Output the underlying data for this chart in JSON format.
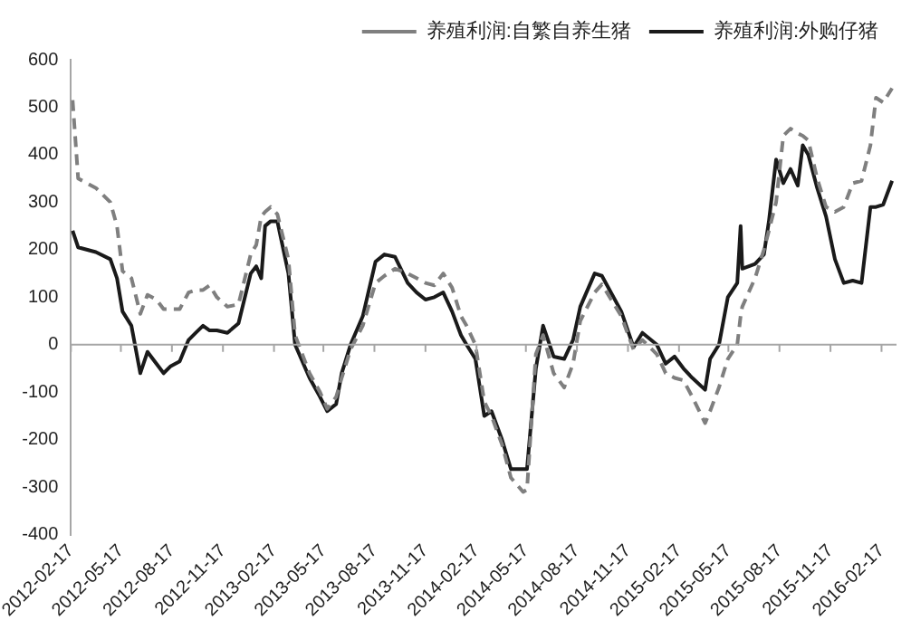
{
  "chart_data": {
    "type": "line",
    "legend": "top",
    "grid": false,
    "x": [
      "2012-02-20",
      "2012-03-01",
      "2012-04-02",
      "2012-04-28",
      "2012-05-10",
      "2012-05-20",
      "2012-06-05",
      "2012-06-21",
      "2012-07-04",
      "2012-07-20",
      "2012-08-02",
      "2012-08-15",
      "2012-08-31",
      "2012-09-16",
      "2012-09-29",
      "2012-10-12",
      "2012-10-24",
      "2012-11-06",
      "2012-11-25",
      "2012-12-15",
      "2013-01-06",
      "2013-01-16",
      "2013-01-25",
      "2013-02-01",
      "2013-02-11",
      "2013-02-23",
      "2013-03-15",
      "2013-03-27",
      "2013-04-22",
      "2013-05-11",
      "2013-05-24",
      "2013-06-09",
      "2013-06-19",
      "2013-07-05",
      "2013-07-27",
      "2013-08-19",
      "2013-09-04",
      "2013-09-23",
      "2013-10-16",
      "2013-11-01",
      "2013-11-17",
      "2013-12-03",
      "2013-12-19",
      "2014-01-04",
      "2014-01-20",
      "2014-01-30",
      "2014-02-15",
      "2014-03-03",
      "2014-03-16",
      "2014-04-04",
      "2014-04-20",
      "2014-05-12",
      "2014-05-19",
      "2014-06-04",
      "2014-06-17",
      "2014-07-06",
      "2014-07-25",
      "2014-08-10",
      "2014-08-23",
      "2014-09-18",
      "2014-10-01",
      "2014-11-05",
      "2014-11-27",
      "2014-12-13",
      "2015-01-08",
      "2015-01-24",
      "2015-02-09",
      "2015-02-25",
      "2015-03-13",
      "2015-04-05",
      "2015-04-14",
      "2015-04-30",
      "2015-05-16",
      "2015-06-02",
      "2015-06-08",
      "2015-06-11",
      "2015-07-04",
      "2015-07-20",
      "2015-07-29",
      "2015-08-11",
      "2015-08-24",
      "2015-09-06",
      "2015-09-19",
      "2015-09-28",
      "2015-10-08",
      "2015-10-24",
      "2015-11-09",
      "2015-11-25",
      "2015-12-11",
      "2015-12-27",
      "2016-01-12",
      "2016-01-28",
      "2016-02-07",
      "2016-02-20",
      "2016-03-07"
    ],
    "series": [
      {
        "name": "养殖利润:自繁自养生猪",
        "color": "#7f7f7f",
        "line_style": "dashed",
        "values": [
          515,
          350,
          330,
          300,
          250,
          155,
          140,
          65,
          105,
          95,
          75,
          75,
          75,
          110,
          115,
          115,
          125,
          100,
          80,
          85,
          190,
          210,
          270,
          280,
          290,
          275,
          180,
          20,
          -60,
          -100,
          -135,
          -110,
          -70,
          -10,
          40,
          130,
          145,
          160,
          150,
          140,
          130,
          125,
          150,
          120,
          60,
          40,
          0,
          -120,
          -150,
          -210,
          -280,
          -310,
          -305,
          -20,
          20,
          -60,
          -90,
          -40,
          50,
          110,
          127,
          60,
          -10,
          10,
          -20,
          -60,
          -70,
          -75,
          -110,
          -165,
          -140,
          -90,
          -30,
          0,
          60,
          80,
          140,
          200,
          240,
          300,
          440,
          455,
          445,
          440,
          430,
          350,
          290,
          280,
          290,
          340,
          345,
          420,
          520,
          510,
          540
        ]
      },
      {
        "name": "养殖利润:外购仔猪",
        "color": "#1a1a1a",
        "line_style": "solid",
        "values": [
          240,
          205,
          195,
          180,
          140,
          70,
          40,
          -60,
          -15,
          -40,
          -60,
          -45,
          -35,
          10,
          25,
          40,
          30,
          30,
          25,
          45,
          150,
          165,
          140,
          250,
          260,
          260,
          150,
          0,
          -70,
          -110,
          -140,
          -125,
          -60,
          0,
          60,
          175,
          190,
          185,
          130,
          110,
          95,
          100,
          110,
          70,
          20,
          0,
          -30,
          -150,
          -140,
          -200,
          -262,
          -262,
          -262,
          -50,
          40,
          -25,
          -30,
          10,
          80,
          150,
          145,
          70,
          -5,
          25,
          0,
          -40,
          -25,
          -50,
          -70,
          -95,
          -30,
          0,
          100,
          130,
          250,
          160,
          170,
          190,
          260,
          390,
          340,
          370,
          335,
          420,
          400,
          330,
          270,
          180,
          130,
          135,
          130,
          290,
          290,
          295,
          345
        ]
      }
    ],
    "xlim": [
      "2012-02-17",
      "2016-03-15"
    ],
    "xticks": [
      "2012-02-17",
      "2012-05-17",
      "2012-08-17",
      "2012-11-17",
      "2013-02-17",
      "2013-05-17",
      "2013-08-17",
      "2013-11-17",
      "2014-02-17",
      "2014-05-17",
      "2014-08-17",
      "2014-11-17",
      "2015-02-17",
      "2015-05-17",
      "2015-08-17",
      "2015-11-17",
      "2016-02-17"
    ],
    "ylim": [
      -400,
      600
    ],
    "yticks": [
      -400,
      -300,
      -200,
      -100,
      0,
      100,
      200,
      300,
      400,
      500,
      600
    ],
    "ref_lines": [
      {
        "axis": "y",
        "value": 0,
        "color": "#a6a6a6"
      }
    ]
  }
}
